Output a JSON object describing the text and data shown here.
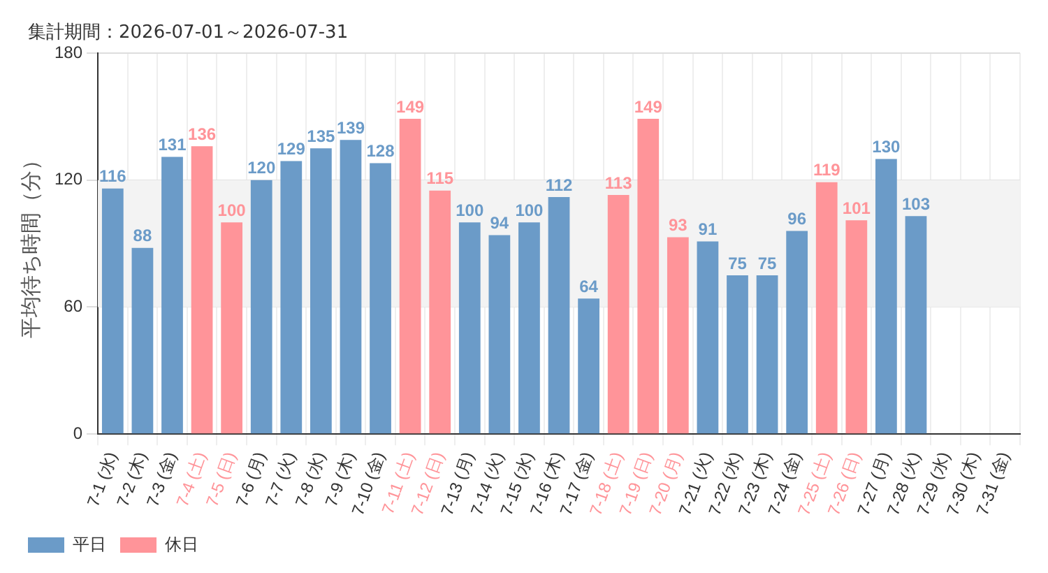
{
  "chart_data": {
    "type": "bar",
    "title": "集計期間：2026-07-01～2026-07-31",
    "ylabel": "平均待ち時間（分）",
    "categories": [
      "7-1 (水)",
      "7-2 (木)",
      "7-3 (金)",
      "7-4 (土)",
      "7-5 (日)",
      "7-6 (月)",
      "7-7 (火)",
      "7-8 (水)",
      "7-9 (木)",
      "7-10 (金)",
      "7-11 (土)",
      "7-12 (日)",
      "7-13 (月)",
      "7-14 (火)",
      "7-15 (水)",
      "7-16 (木)",
      "7-17 (金)",
      "7-18 (土)",
      "7-19 (日)",
      "7-20 (月)",
      "7-21 (火)",
      "7-22 (水)",
      "7-23 (木)",
      "7-24 (金)",
      "7-25 (土)",
      "7-26 (日)",
      "7-27 (月)",
      "7-28 (火)",
      "7-29 (水)",
      "7-30 (木)",
      "7-31 (金)"
    ],
    "series": [
      {
        "name": "平日",
        "color": "#6b9bc8",
        "values": [
          116,
          88,
          131,
          null,
          null,
          120,
          129,
          135,
          139,
          128,
          null,
          null,
          100,
          94,
          100,
          112,
          64,
          null,
          null,
          null,
          91,
          75,
          75,
          96,
          null,
          null,
          130,
          103,
          null,
          null,
          null
        ]
      },
      {
        "name": "休日",
        "color": "#ff9499",
        "values": [
          null,
          null,
          null,
          136,
          100,
          null,
          null,
          null,
          null,
          null,
          149,
          115,
          null,
          null,
          null,
          null,
          null,
          113,
          149,
          93,
          null,
          null,
          null,
          null,
          119,
          101,
          null,
          null,
          null,
          null,
          null
        ]
      }
    ],
    "stacked": true,
    "ylim": [
      0,
      180
    ],
    "yticks": [
      0,
      60,
      120,
      180
    ],
    "grid": true,
    "legend": "bottom left",
    "data_labels": true,
    "bands": [
      {
        "axis": "y",
        "from": 60,
        "to": 120,
        "color": "#f3f3f3"
      }
    ]
  }
}
